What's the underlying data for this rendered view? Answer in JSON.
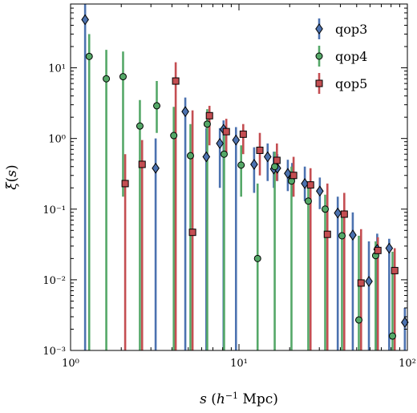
{
  "chart_data": {
    "type": "scatter",
    "title": "",
    "xlabel": "s (h⁻¹ Mpc)",
    "ylabel": "ξ(s)",
    "xscale": "log",
    "yscale": "log",
    "xlim": [
      1,
      100
    ],
    "ylim": [
      0.001,
      80
    ],
    "grid": false,
    "legend_position": "top-right",
    "x_ticks": [
      {
        "value": 1,
        "label": "10⁰"
      },
      {
        "value": 10,
        "label": "10¹"
      },
      {
        "value": 100,
        "label": "10²"
      }
    ],
    "y_ticks": [
      {
        "value": 0.001,
        "label": "10⁻³"
      },
      {
        "value": 0.01,
        "label": "10⁻²"
      },
      {
        "value": 0.1,
        "label": "10⁻¹"
      },
      {
        "value": 1,
        "label": "10⁰"
      },
      {
        "value": 10,
        "label": "10¹"
      }
    ],
    "series": [
      {
        "name": "qop3",
        "marker": "diamond",
        "color": "#4C72B0",
        "points": [
          {
            "x": 1.22,
            "y": 48,
            "lo": 0.001,
            "hi": 80
          },
          {
            "x": 3.2,
            "y": 0.38,
            "lo": 0.001,
            "hi": 1.0
          },
          {
            "x": 4.8,
            "y": 2.4,
            "lo": 0.001,
            "hi": 3.8
          },
          {
            "x": 6.4,
            "y": 0.55,
            "lo": 0.001,
            "hi": 1.4
          },
          {
            "x": 7.7,
            "y": 0.85,
            "lo": 0.2,
            "hi": 1.4
          },
          {
            "x": 8.1,
            "y": 1.35,
            "lo": 0.001,
            "hi": 1.8
          },
          {
            "x": 9.6,
            "y": 0.95,
            "lo": 0.001,
            "hi": 1.45
          },
          {
            "x": 12.3,
            "y": 0.43,
            "lo": 0.17,
            "hi": 0.75
          },
          {
            "x": 14.8,
            "y": 0.55,
            "lo": 0.25,
            "hi": 0.85
          },
          {
            "x": 16.1,
            "y": 0.37,
            "lo": 0.2,
            "hi": 0.65
          },
          {
            "x": 16.9,
            "y": 0.38,
            "lo": 0.25,
            "hi": 0.6
          },
          {
            "x": 19.5,
            "y": 0.32,
            "lo": 0.18,
            "hi": 0.5
          },
          {
            "x": 20.7,
            "y": 0.28,
            "lo": 0.15,
            "hi": 0.45
          },
          {
            "x": 24.6,
            "y": 0.23,
            "lo": 0.13,
            "hi": 0.4
          },
          {
            "x": 30.2,
            "y": 0.18,
            "lo": 0.1,
            "hi": 0.28
          },
          {
            "x": 38.6,
            "y": 0.088,
            "lo": 0.001,
            "hi": 0.15
          },
          {
            "x": 47.4,
            "y": 0.043,
            "lo": 0.001,
            "hi": 0.09
          },
          {
            "x": 59.1,
            "y": 0.0095,
            "lo": 0.001,
            "hi": 0.035
          },
          {
            "x": 66.2,
            "y": 0.027,
            "lo": 0.001,
            "hi": 0.045
          },
          {
            "x": 78.0,
            "y": 0.028,
            "lo": 0.001,
            "hi": 0.038
          },
          {
            "x": 96.6,
            "y": 0.0025,
            "lo": 0.001,
            "hi": 0.004
          }
        ]
      },
      {
        "name": "qop4",
        "marker": "circle",
        "color": "#55A868",
        "points": [
          {
            "x": 1.29,
            "y": 14.5,
            "lo": 0.001,
            "hi": 30
          },
          {
            "x": 1.63,
            "y": 7.0,
            "lo": 0.001,
            "hi": 18
          },
          {
            "x": 2.05,
            "y": 7.5,
            "lo": 0.15,
            "hi": 17
          },
          {
            "x": 2.58,
            "y": 1.5,
            "lo": 0.001,
            "hi": 3.5
          },
          {
            "x": 3.25,
            "y": 2.9,
            "lo": 1.2,
            "hi": 6.5
          },
          {
            "x": 4.1,
            "y": 1.1,
            "lo": 0.001,
            "hi": 2.8
          },
          {
            "x": 5.15,
            "y": 0.57,
            "lo": 0.001,
            "hi": 1.6
          },
          {
            "x": 6.48,
            "y": 1.6,
            "lo": 0.001,
            "hi": 2.6
          },
          {
            "x": 8.16,
            "y": 0.6,
            "lo": 0.001,
            "hi": 1.1
          },
          {
            "x": 10.3,
            "y": 0.42,
            "lo": 0.15,
            "hi": 0.8
          },
          {
            "x": 12.9,
            "y": 0.02,
            "lo": 0.001,
            "hi": 0.23
          },
          {
            "x": 16.3,
            "y": 0.4,
            "lo": 0.001,
            "hi": 0.65
          },
          {
            "x": 20.5,
            "y": 0.25,
            "lo": 0.001,
            "hi": 0.4
          },
          {
            "x": 25.8,
            "y": 0.13,
            "lo": 0.001,
            "hi": 0.21
          },
          {
            "x": 32.5,
            "y": 0.1,
            "lo": 0.001,
            "hi": 0.16
          },
          {
            "x": 40.9,
            "y": 0.042,
            "lo": 0.001,
            "hi": 0.09
          },
          {
            "x": 51.5,
            "y": 0.0027,
            "lo": 0.001,
            "hi": 0.042
          },
          {
            "x": 64.8,
            "y": 0.022,
            "lo": 0.001,
            "hi": 0.035
          },
          {
            "x": 81.6,
            "y": 0.0016,
            "lo": 0.001,
            "hi": 0.025
          }
        ]
      },
      {
        "name": "qop5",
        "marker": "square",
        "color": "#C44E52",
        "points": [
          {
            "x": 2.11,
            "y": 0.23,
            "lo": 0.001,
            "hi": 0.6
          },
          {
            "x": 2.66,
            "y": 0.43,
            "lo": 0.001,
            "hi": 0.95
          },
          {
            "x": 4.21,
            "y": 6.5,
            "lo": 0.001,
            "hi": 12
          },
          {
            "x": 5.3,
            "y": 0.047,
            "lo": 0.001,
            "hi": 2.5
          },
          {
            "x": 6.68,
            "y": 2.1,
            "lo": 0.8,
            "hi": 2.9
          },
          {
            "x": 8.41,
            "y": 1.25,
            "lo": 0.6,
            "hi": 1.9
          },
          {
            "x": 10.6,
            "y": 1.15,
            "lo": 0.6,
            "hi": 1.6
          },
          {
            "x": 13.3,
            "y": 0.68,
            "lo": 0.3,
            "hi": 1.2
          },
          {
            "x": 16.8,
            "y": 0.49,
            "lo": 0.25,
            "hi": 0.85
          },
          {
            "x": 21.1,
            "y": 0.3,
            "lo": 0.15,
            "hi": 0.55
          },
          {
            "x": 26.6,
            "y": 0.22,
            "lo": 0.001,
            "hi": 0.38
          },
          {
            "x": 33.5,
            "y": 0.044,
            "lo": 0.001,
            "hi": 0.23
          },
          {
            "x": 42.2,
            "y": 0.085,
            "lo": 0.001,
            "hi": 0.17
          },
          {
            "x": 53.1,
            "y": 0.009,
            "lo": 0.001,
            "hi": 0.052
          },
          {
            "x": 66.8,
            "y": 0.026,
            "lo": 0.001,
            "hi": 0.04
          },
          {
            "x": 84.1,
            "y": 0.0135,
            "lo": 0.001,
            "hi": 0.028
          }
        ]
      }
    ]
  }
}
